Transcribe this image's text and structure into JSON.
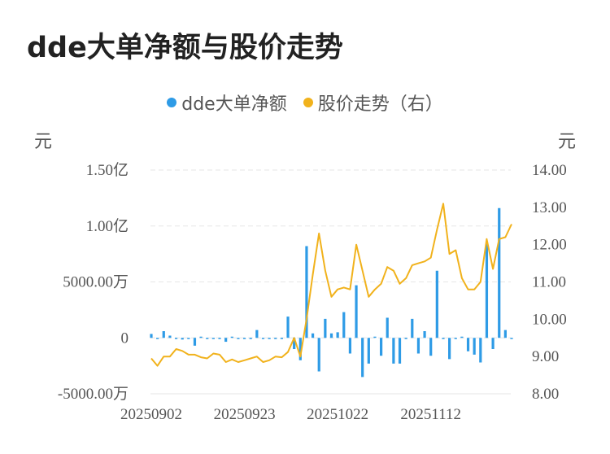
{
  "title": "dde大单净额与股价走势",
  "legend": [
    {
      "label": "dde大单净额",
      "color": "#2e9be6"
    },
    {
      "label": "股价走势（右）",
      "color": "#f1b21c"
    }
  ],
  "units": {
    "left": "元",
    "right": "元"
  },
  "chart_data": {
    "type": "bar+line",
    "title": "dde大单净额与股价走势",
    "left_axis": {
      "ticks": [
        "1.50亿",
        "1.00亿",
        "5000.00万",
        "0",
        "-5000.00万"
      ],
      "tick_values": [
        150000000,
        100000000,
        50000000,
        0,
        -50000000
      ],
      "range": [
        -50000000,
        150000000
      ]
    },
    "right_axis": {
      "ticks": [
        "14.00",
        "13.00",
        "12.00",
        "11.00",
        "10.00",
        "9.00",
        "8.00"
      ],
      "tick_values": [
        14,
        13,
        12,
        11,
        10,
        9,
        8
      ],
      "range": [
        8,
        14
      ]
    },
    "x_tick_labels": [
      "20250902",
      "20250923",
      "20251022",
      "20251112"
    ],
    "x_tick_indices": [
      0,
      15,
      30,
      45
    ],
    "grid": true,
    "legend_position": "top-center",
    "series": [
      {
        "name": "dde大单净额",
        "type": "bar",
        "axis": "left",
        "color": "#2e9be6",
        "values": [
          3500000,
          -500000,
          6000000,
          2000000,
          -1000000,
          -1500000,
          -500000,
          -7000000,
          0,
          -1000000,
          -1000000,
          -500000,
          -3500000,
          0,
          -1000000,
          -1000000,
          -500000,
          7000000,
          -1000000,
          -1000000,
          -1000000,
          -1000000,
          19000000,
          -10000000,
          -20000000,
          82000000,
          4000000,
          -30000000,
          17000000,
          4000000,
          5000000,
          23000000,
          -14000000,
          47000000,
          -35000000,
          -23000000,
          0,
          -16000000,
          18000000,
          -23000000,
          -23000000,
          -1000000,
          17000000,
          -14000000,
          6000000,
          -16000000,
          60000000,
          -1000000,
          -19000000,
          -1000000,
          0,
          -12000000,
          -15000000,
          -22000000,
          84000000,
          -10000000,
          116000000,
          7000000,
          -1000000
        ]
      },
      {
        "name": "股价走势（右）",
        "type": "line",
        "axis": "right",
        "color": "#f1b21c",
        "values": [
          8.95,
          8.75,
          9.0,
          9.0,
          9.2,
          9.15,
          9.05,
          9.05,
          8.98,
          8.95,
          9.08,
          9.05,
          8.85,
          8.92,
          8.85,
          8.9,
          8.95,
          9.0,
          8.85,
          8.9,
          9.0,
          8.98,
          9.12,
          9.5,
          9.0,
          10.0,
          11.2,
          12.3,
          11.3,
          10.6,
          10.8,
          10.85,
          10.8,
          12.0,
          11.3,
          10.6,
          10.8,
          10.95,
          11.4,
          11.3,
          10.95,
          11.1,
          11.45,
          11.5,
          11.55,
          11.65,
          12.4,
          13.1,
          11.75,
          11.85,
          11.1,
          10.8,
          10.8,
          11.0,
          12.15,
          11.35,
          12.15,
          12.2,
          12.55
        ]
      }
    ]
  }
}
